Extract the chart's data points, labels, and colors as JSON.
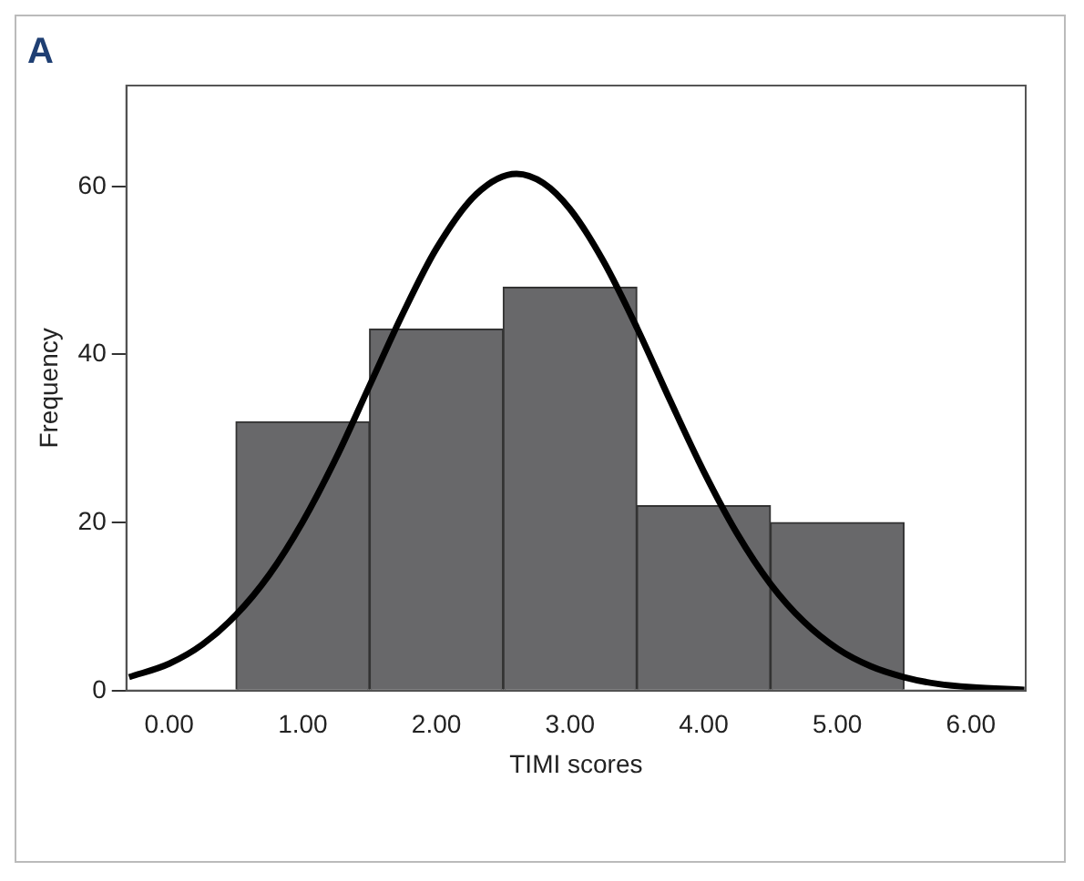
{
  "chart_data": {
    "type": "histogram",
    "title": "A",
    "xlabel": "TIMI scores",
    "ylabel": "Frequency",
    "bins": [
      0.5,
      1.5,
      2.5,
      3.5,
      4.5,
      5.5
    ],
    "values": [
      32,
      43,
      48,
      22,
      20
    ],
    "color": "#68686a",
    "series": [
      {
        "type": "line",
        "color": "#000000",
        "x": [
          -0.3,
          0,
          0.25,
          0.5,
          0.75,
          1,
          1.25,
          1.5,
          1.75,
          2,
          2.3,
          2.6,
          2.8,
          3,
          3.25,
          3.5,
          3.75,
          4,
          4.25,
          4.5,
          4.75,
          5,
          5.25,
          5.5,
          5.75,
          6,
          6.4
        ],
        "values": [
          1.6,
          3.2,
          5.5,
          9,
          13.8,
          20.1,
          27.7,
          36.3,
          44.9,
          52.6,
          59.1,
          61.5,
          60.4,
          57.3,
          51.1,
          43.2,
          34.5,
          26.1,
          18.7,
          12.7,
          8.2,
          5,
          2.9,
          1.6,
          0.8,
          0.4,
          0.1
        ]
      }
    ],
    "xlim": [
      -0.32,
      6.41
    ],
    "xticks": [
      {
        "value": 0,
        "label": "0.00"
      },
      {
        "value": 1,
        "label": "1.00"
      },
      {
        "value": 2,
        "label": "2.00"
      },
      {
        "value": 3,
        "label": "3.00"
      },
      {
        "value": 4,
        "label": "4.00"
      },
      {
        "value": 5,
        "label": "5.00"
      },
      {
        "value": 6,
        "label": "6.00"
      }
    ],
    "ylim": [
      0,
      72
    ],
    "yticks": [
      0,
      20,
      40,
      60
    ],
    "grid": false,
    "legend": false
  }
}
